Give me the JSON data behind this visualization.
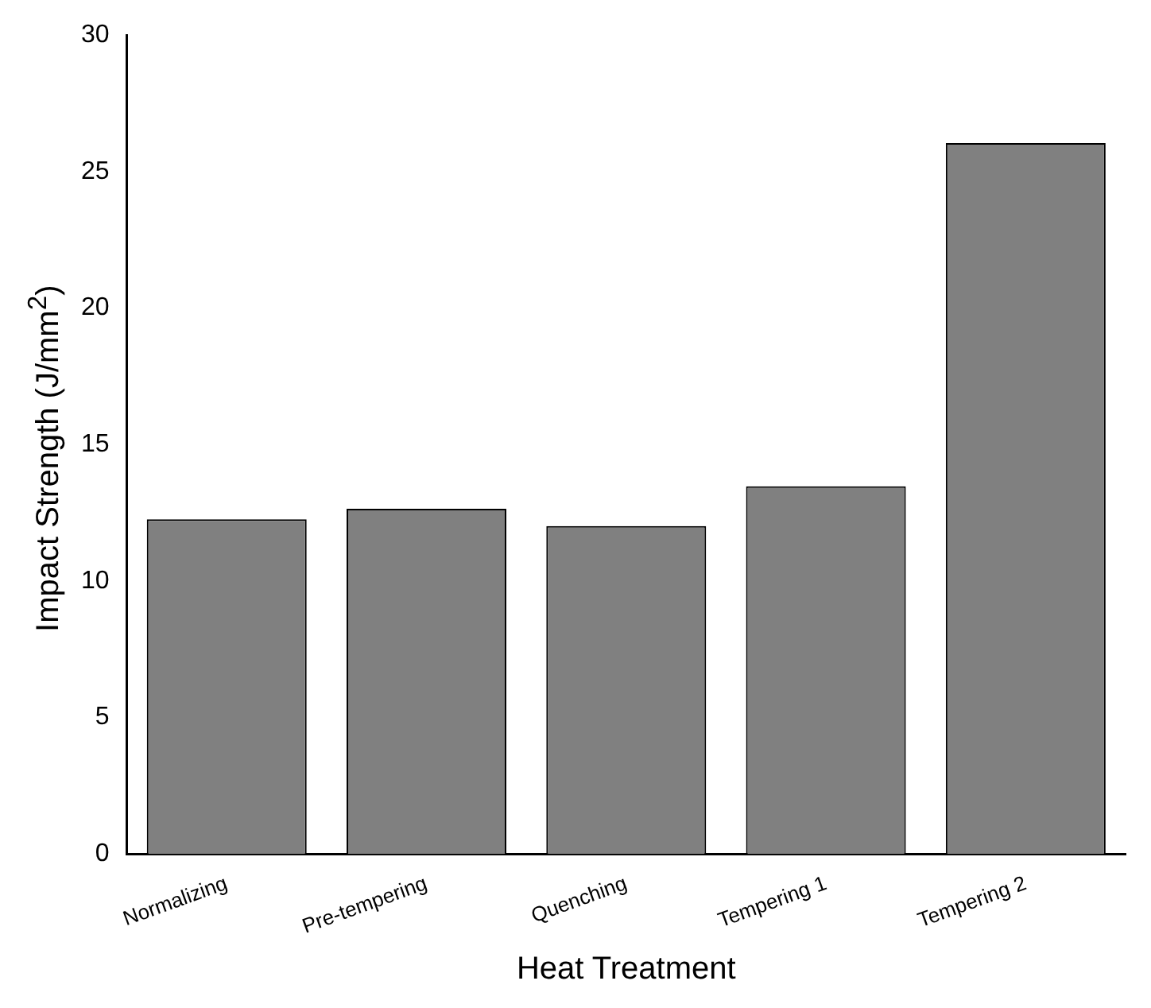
{
  "chart_data": {
    "type": "bar",
    "xlabel": "Heat Treatment",
    "ylabel": "Impact Strength (J/mm$^{2}$)",
    "categories": [
      "Normalizing",
      "Pre-tempering",
      "Quenching",
      "Tempering 1",
      "Tempering 2"
    ],
    "values": [
      12.26,
      12.65,
      12.01,
      13.47,
      26.04
    ],
    "color": "#808080",
    "ylim": [
      0,
      30
    ],
    "yticks": [
      0,
      5,
      10,
      15,
      20,
      25,
      30
    ],
    "grid": false,
    "legend": false
  }
}
